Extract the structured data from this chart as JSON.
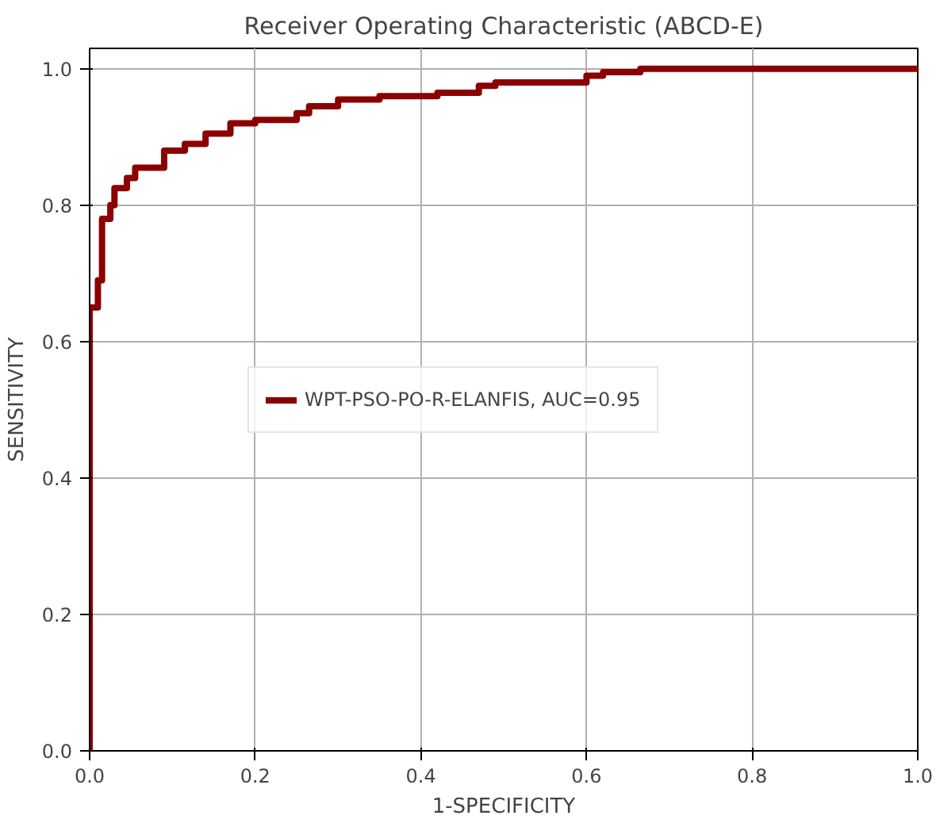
{
  "chart_data": {
    "type": "line",
    "title": "Receiver Operating Characteristic (ABCD-E)",
    "xlabel": "1-SPECIFICITY",
    "ylabel": "SENSITIVITY",
    "series": [
      {
        "name": "WPT-PSO-PO-R-ELANFIS, AUC=0.95",
        "color": "#8b0000",
        "x": [
          0,
          0,
          0.01,
          0.01,
          0.015,
          0.015,
          0.025,
          0.025,
          0.03,
          0.03,
          0.045,
          0.045,
          0.055,
          0.055,
          0.09,
          0.09,
          0.115,
          0.115,
          0.14,
          0.14,
          0.17,
          0.17,
          0.2,
          0.2,
          0.25,
          0.25,
          0.265,
          0.265,
          0.3,
          0.3,
          0.35,
          0.35,
          0.42,
          0.42,
          0.47,
          0.47,
          0.49,
          0.49,
          0.6,
          0.6,
          0.62,
          0.62,
          0.665,
          0.665,
          1.0
        ],
        "values": [
          0,
          0.65,
          0.65,
          0.69,
          0.69,
          0.78,
          0.78,
          0.8,
          0.8,
          0.825,
          0.825,
          0.84,
          0.84,
          0.855,
          0.855,
          0.88,
          0.88,
          0.89,
          0.89,
          0.905,
          0.905,
          0.92,
          0.92,
          0.925,
          0.925,
          0.935,
          0.935,
          0.945,
          0.945,
          0.955,
          0.955,
          0.96,
          0.96,
          0.965,
          0.965,
          0.975,
          0.975,
          0.98,
          0.98,
          0.99,
          0.99,
          0.995,
          0.995,
          1.0,
          1.0
        ]
      }
    ],
    "xlim": [
      0,
      1.0
    ],
    "ylim": [
      0,
      1.03
    ],
    "xticks": [
      {
        "value": 0,
        "label": "0.0"
      },
      0.2,
      0.4,
      0.6,
      0.8,
      {
        "value": 1,
        "label": "1.0"
      }
    ],
    "yticks": [
      {
        "value": 0,
        "label": "0.0"
      },
      0.2,
      0.4,
      0.6,
      0.8,
      {
        "value": 1,
        "label": "1.0"
      }
    ],
    "grid": true,
    "legend": "center",
    "line_style": "solid",
    "marker": "none"
  }
}
